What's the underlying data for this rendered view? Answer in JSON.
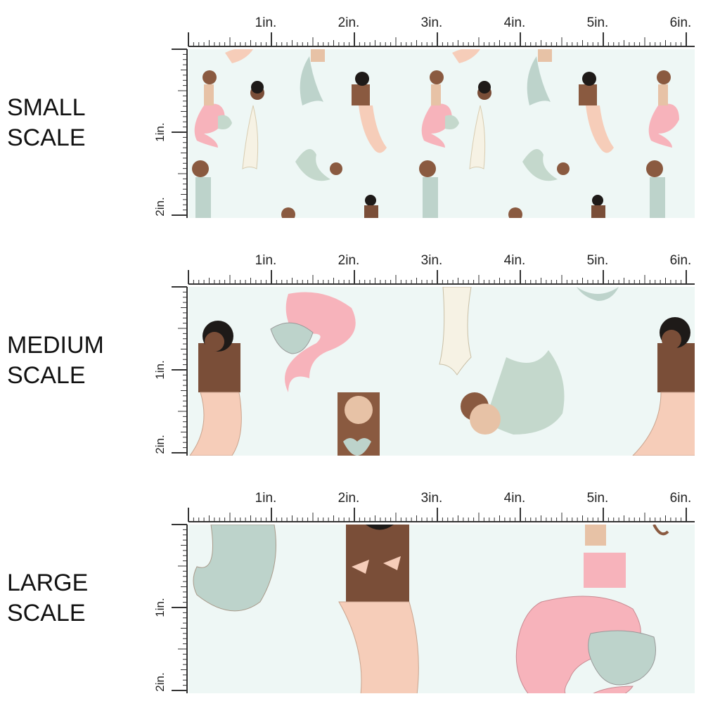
{
  "panels": [
    {
      "id": "small",
      "label_line1": "SMALL",
      "label_line2": "SCALE",
      "h_ticks": [
        "1in.",
        "2in.",
        "3in.",
        "4in.",
        "5in.",
        "6in."
      ],
      "v_ticks": [
        "1in.",
        "2in."
      ]
    },
    {
      "id": "medium",
      "label_line1": "MEDIUM",
      "label_line2": "SCALE",
      "h_ticks": [
        "1in.",
        "2in.",
        "3in.",
        "4in.",
        "5in.",
        "6in."
      ],
      "v_ticks": [
        "1in.",
        "2in."
      ]
    },
    {
      "id": "large",
      "label_line1": "LARGE",
      "label_line2": "SCALE",
      "h_ticks": [
        "1in.",
        "2in.",
        "3in.",
        "4in.",
        "5in.",
        "6in."
      ],
      "v_ticks": [
        "1in.",
        "2in."
      ]
    }
  ],
  "colors": {
    "fabric_background": "#eef7f5",
    "ruler": "#333333",
    "tail_pink": "#f7b3bb",
    "tail_sage": "#c4d8cc",
    "tail_seafoam": "#bdd3cb",
    "tail_cream": "#f6f2e4",
    "tail_peach": "#f6cdb9",
    "skin_light": "#e7c2a6",
    "skin_dark": "#7a4e38",
    "hair_brown": "#8a5a40",
    "hair_black": "#1e1a18"
  }
}
